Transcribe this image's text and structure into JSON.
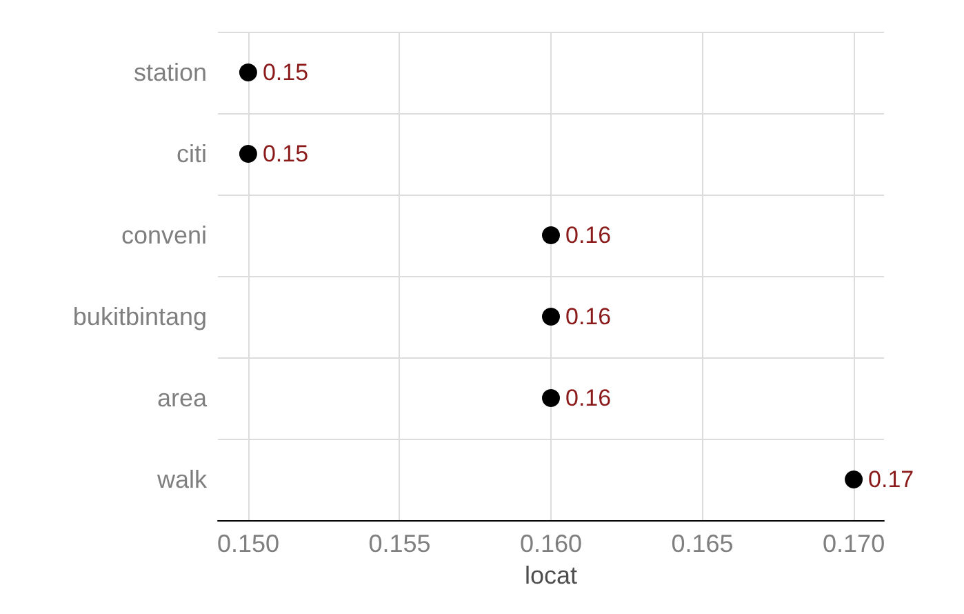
{
  "chart_data": {
    "type": "scatter",
    "orientation": "horizontal",
    "xlabel": "locat",
    "categories": [
      "station",
      "citi",
      "conveni",
      "bukitbintang",
      "area",
      "walk"
    ],
    "series": [
      {
        "color": "#000000",
        "values": [
          0.15,
          0.15,
          0.16,
          0.16,
          0.16,
          0.17
        ]
      }
    ],
    "xlim": [
      0.149,
      0.171
    ],
    "xticks": [
      {
        "value": 0.15,
        "label": "0.150"
      },
      {
        "value": 0.155,
        "label": "0.155"
      },
      {
        "value": 0.16,
        "label": "0.160"
      },
      {
        "value": 0.165,
        "label": "0.165"
      },
      {
        "value": 0.17,
        "label": "0.170"
      }
    ],
    "grid": true,
    "marker": "circle",
    "data_labels": true
  }
}
